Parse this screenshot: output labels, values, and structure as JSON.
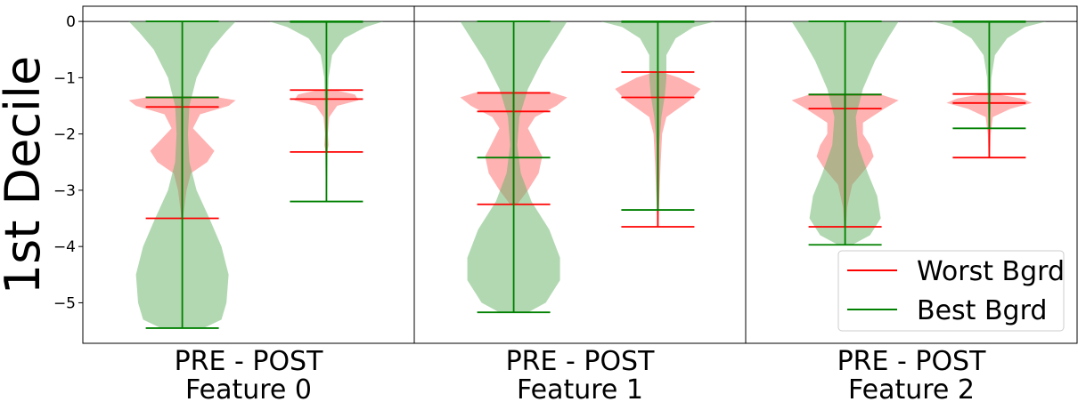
{
  "chart_data": {
    "type": "violin",
    "ylabel": "1st Decile",
    "ylim": [
      -5.72,
      0.27
    ],
    "yticks": [
      0,
      -1,
      -2,
      -3,
      -4,
      -5
    ],
    "ytick_labels": [
      "0",
      "−1",
      "−2",
      "−3",
      "−4",
      "−5"
    ],
    "colors": {
      "worst": "#ff0000",
      "best": "#008000"
    },
    "legend": {
      "placement": "lower-right",
      "entries": [
        {
          "key": "worst",
          "label": "Worst Bgrd"
        },
        {
          "key": "best",
          "label": "Best Bgrd"
        }
      ]
    },
    "panels": [
      {
        "tick_label": "PRE    -    POST",
        "label": "Feature 0",
        "violins": [
          {
            "series": "worst",
            "phase": "PRE",
            "max": -1.35,
            "median": -1.52,
            "min": -3.5,
            "profile": [
              [
                -1.35,
                0.5
              ],
              [
                -1.4,
                0.75
              ],
              [
                -1.5,
                0.65
              ],
              [
                -1.65,
                0.25
              ],
              [
                -1.9,
                0.15
              ],
              [
                -2.1,
                0.3
              ],
              [
                -2.3,
                0.45
              ],
              [
                -2.5,
                0.35
              ],
              [
                -2.7,
                0.12
              ],
              [
                -3.0,
                0.06
              ],
              [
                -3.5,
                0.01
              ]
            ]
          },
          {
            "series": "best",
            "phase": "PRE",
            "max": 0.0,
            "median": -1.35,
            "min": -5.45,
            "profile": [
              [
                0,
                0.75
              ],
              [
                -0.2,
                0.6
              ],
              [
                -0.5,
                0.4
              ],
              [
                -1.0,
                0.2
              ],
              [
                -1.5,
                0.1
              ],
              [
                -2.0,
                0.08
              ],
              [
                -2.5,
                0.1
              ],
              [
                -3.0,
                0.2
              ],
              [
                -3.5,
                0.38
              ],
              [
                -4.0,
                0.55
              ],
              [
                -4.5,
                0.65
              ],
              [
                -5.0,
                0.62
              ],
              [
                -5.3,
                0.55
              ],
              [
                -5.45,
                0.3
              ]
            ]
          },
          {
            "series": "worst",
            "phase": "POST",
            "max": -1.22,
            "median": -1.38,
            "min": -2.32,
            "profile": [
              [
                -1.22,
                0.12
              ],
              [
                -1.3,
                0.4
              ],
              [
                -1.4,
                0.45
              ],
              [
                -1.5,
                0.15
              ],
              [
                -1.7,
                0.04
              ],
              [
                -2.0,
                0.02
              ],
              [
                -2.2,
                0.03
              ],
              [
                -2.32,
                0.01
              ]
            ]
          },
          {
            "series": "best",
            "phase": "POST",
            "max": 0.0,
            "median": -0.01,
            "min": -3.2,
            "profile": [
              [
                0,
                0.8
              ],
              [
                -0.1,
                0.55
              ],
              [
                -0.3,
                0.25
              ],
              [
                -0.6,
                0.08
              ],
              [
                -1.0,
                0.03
              ],
              [
                -1.5,
                0.02
              ],
              [
                -2.5,
                0.015
              ],
              [
                -3.2,
                0.005
              ]
            ]
          }
        ]
      },
      {
        "tick_label": "PRE    -    POST",
        "label": "Feature 1",
        "violins": [
          {
            "series": "worst",
            "phase": "PRE",
            "max": -1.27,
            "median": -1.6,
            "min": -3.25,
            "profile": [
              [
                -1.27,
                0.55
              ],
              [
                -1.35,
                0.75
              ],
              [
                -1.5,
                0.6
              ],
              [
                -1.7,
                0.3
              ],
              [
                -1.9,
                0.2
              ],
              [
                -2.1,
                0.28
              ],
              [
                -2.4,
                0.4
              ],
              [
                -2.7,
                0.35
              ],
              [
                -3.0,
                0.2
              ],
              [
                -3.25,
                0.05
              ]
            ]
          },
          {
            "series": "best",
            "phase": "PRE",
            "max": 0.0,
            "median": -2.42,
            "min": -5.17,
            "profile": [
              [
                0,
                0.75
              ],
              [
                -0.3,
                0.6
              ],
              [
                -0.7,
                0.4
              ],
              [
                -1.2,
                0.2
              ],
              [
                -1.7,
                0.08
              ],
              [
                -2.2,
                0.05
              ],
              [
                -2.7,
                0.1
              ],
              [
                -3.2,
                0.25
              ],
              [
                -3.7,
                0.5
              ],
              [
                -4.2,
                0.65
              ],
              [
                -4.6,
                0.65
              ],
              [
                -5.0,
                0.45
              ],
              [
                -5.17,
                0.2
              ]
            ]
          },
          {
            "series": "worst",
            "phase": "POST",
            "max": -0.9,
            "median": -1.35,
            "min": -3.65,
            "profile": [
              [
                -0.9,
                0.05
              ],
              [
                -1.0,
                0.3
              ],
              [
                -1.2,
                0.6
              ],
              [
                -1.4,
                0.45
              ],
              [
                -1.7,
                0.12
              ],
              [
                -2.0,
                0.06
              ],
              [
                -2.5,
                0.04
              ],
              [
                -3.0,
                0.025
              ],
              [
                -3.65,
                0.005
              ]
            ]
          },
          {
            "series": "best",
            "phase": "POST",
            "max": 0.0,
            "median": -0.01,
            "min": -3.35,
            "profile": [
              [
                0,
                0.8
              ],
              [
                -0.1,
                0.5
              ],
              [
                -0.3,
                0.25
              ],
              [
                -0.6,
                0.12
              ],
              [
                -1.0,
                0.12
              ],
              [
                -1.3,
                0.1
              ],
              [
                -1.7,
                0.05
              ],
              [
                -2.2,
                0.02
              ],
              [
                -3.0,
                0.015
              ],
              [
                -3.35,
                0.005
              ]
            ]
          }
        ]
      },
      {
        "tick_label": "PRE    -    POST",
        "label": "Feature 2",
        "violins": [
          {
            "series": "worst",
            "phase": "PRE",
            "max": -1.3,
            "median": -1.55,
            "min": -3.65,
            "profile": [
              [
                -1.3,
                0.5
              ],
              [
                -1.4,
                0.75
              ],
              [
                -1.55,
                0.55
              ],
              [
                -1.8,
                0.25
              ],
              [
                -2.0,
                0.25
              ],
              [
                -2.2,
                0.35
              ],
              [
                -2.4,
                0.4
              ],
              [
                -2.6,
                0.3
              ],
              [
                -2.9,
                0.1
              ],
              [
                -3.3,
                0.03
              ],
              [
                -3.65,
                0.01
              ]
            ]
          },
          {
            "series": "best",
            "phase": "PRE",
            "max": 0.0,
            "median": -1.3,
            "min": -3.97,
            "profile": [
              [
                0,
                0.75
              ],
              [
                -0.3,
                0.6
              ],
              [
                -0.7,
                0.42
              ],
              [
                -1.2,
                0.25
              ],
              [
                -1.7,
                0.15
              ],
              [
                -2.2,
                0.18
              ],
              [
                -2.7,
                0.32
              ],
              [
                -3.1,
                0.45
              ],
              [
                -3.5,
                0.5
              ],
              [
                -3.8,
                0.35
              ],
              [
                -3.97,
                0.1
              ]
            ]
          },
          {
            "series": "worst",
            "phase": "POST",
            "max": -1.29,
            "median": -1.45,
            "min": -2.42,
            "profile": [
              [
                -1.29,
                0.1
              ],
              [
                -1.37,
                0.45
              ],
              [
                -1.45,
                0.6
              ],
              [
                -1.55,
                0.3
              ],
              [
                -1.7,
                0.05
              ],
              [
                -2.0,
                0.02
              ],
              [
                -2.42,
                0.01
              ]
            ]
          },
          {
            "series": "best",
            "phase": "POST",
            "max": 0.0,
            "median": -0.01,
            "min": -1.9,
            "profile": [
              [
                0,
                0.8
              ],
              [
                -0.1,
                0.5
              ],
              [
                -0.3,
                0.25
              ],
              [
                -0.6,
                0.08
              ],
              [
                -1.0,
                0.03
              ],
              [
                -1.5,
                0.02
              ],
              [
                -1.9,
                0.005
              ]
            ]
          }
        ]
      }
    ]
  }
}
